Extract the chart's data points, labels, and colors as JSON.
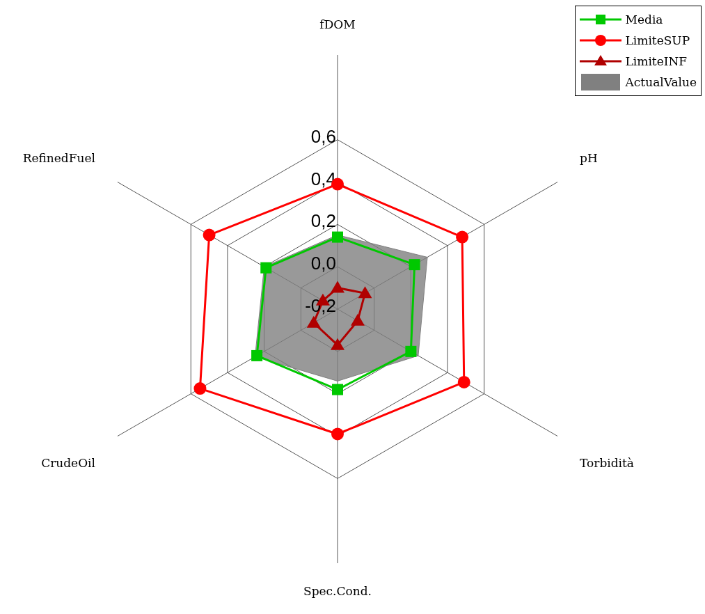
{
  "chart_data": {
    "type": "radar",
    "categories": [
      "fDOM",
      "pH",
      "Torbidità",
      "Spec.Cond.",
      "CrudeOil",
      "RefinedFuel"
    ],
    "series": [
      {
        "name": "Media",
        "color": "#00c800",
        "marker": "square",
        "values": [
          0.14,
          0.22,
          0.2,
          0.18,
          0.24,
          0.19
        ]
      },
      {
        "name": "LimiteSUP",
        "color": "#ff0000",
        "marker": "circle",
        "values": [
          0.39,
          0.48,
          0.49,
          0.39,
          0.55,
          0.5
        ]
      },
      {
        "name": "LimiteINF",
        "color": "#b00000",
        "marker": "triangle",
        "values": [
          -0.1,
          -0.05,
          -0.09,
          -0.03,
          -0.07,
          -0.12
        ]
      },
      {
        "name": "ActualValue",
        "type": "area",
        "color": "#808080",
        "marker": "none",
        "values": [
          0.15,
          0.29,
          0.24,
          0.14,
          0.25,
          0.2
        ]
      }
    ],
    "ylim": [
      -0.2,
      0.6
    ],
    "yticks": [
      {
        "value": -0.2,
        "label": "-0,2"
      },
      {
        "value": 0.0,
        "label": "0,0"
      },
      {
        "value": 0.2,
        "label": "0,2"
      },
      {
        "value": 0.4,
        "label": "0,4"
      },
      {
        "value": 0.6,
        "label": "0,6"
      }
    ],
    "grid": true,
    "legend": "top right"
  }
}
